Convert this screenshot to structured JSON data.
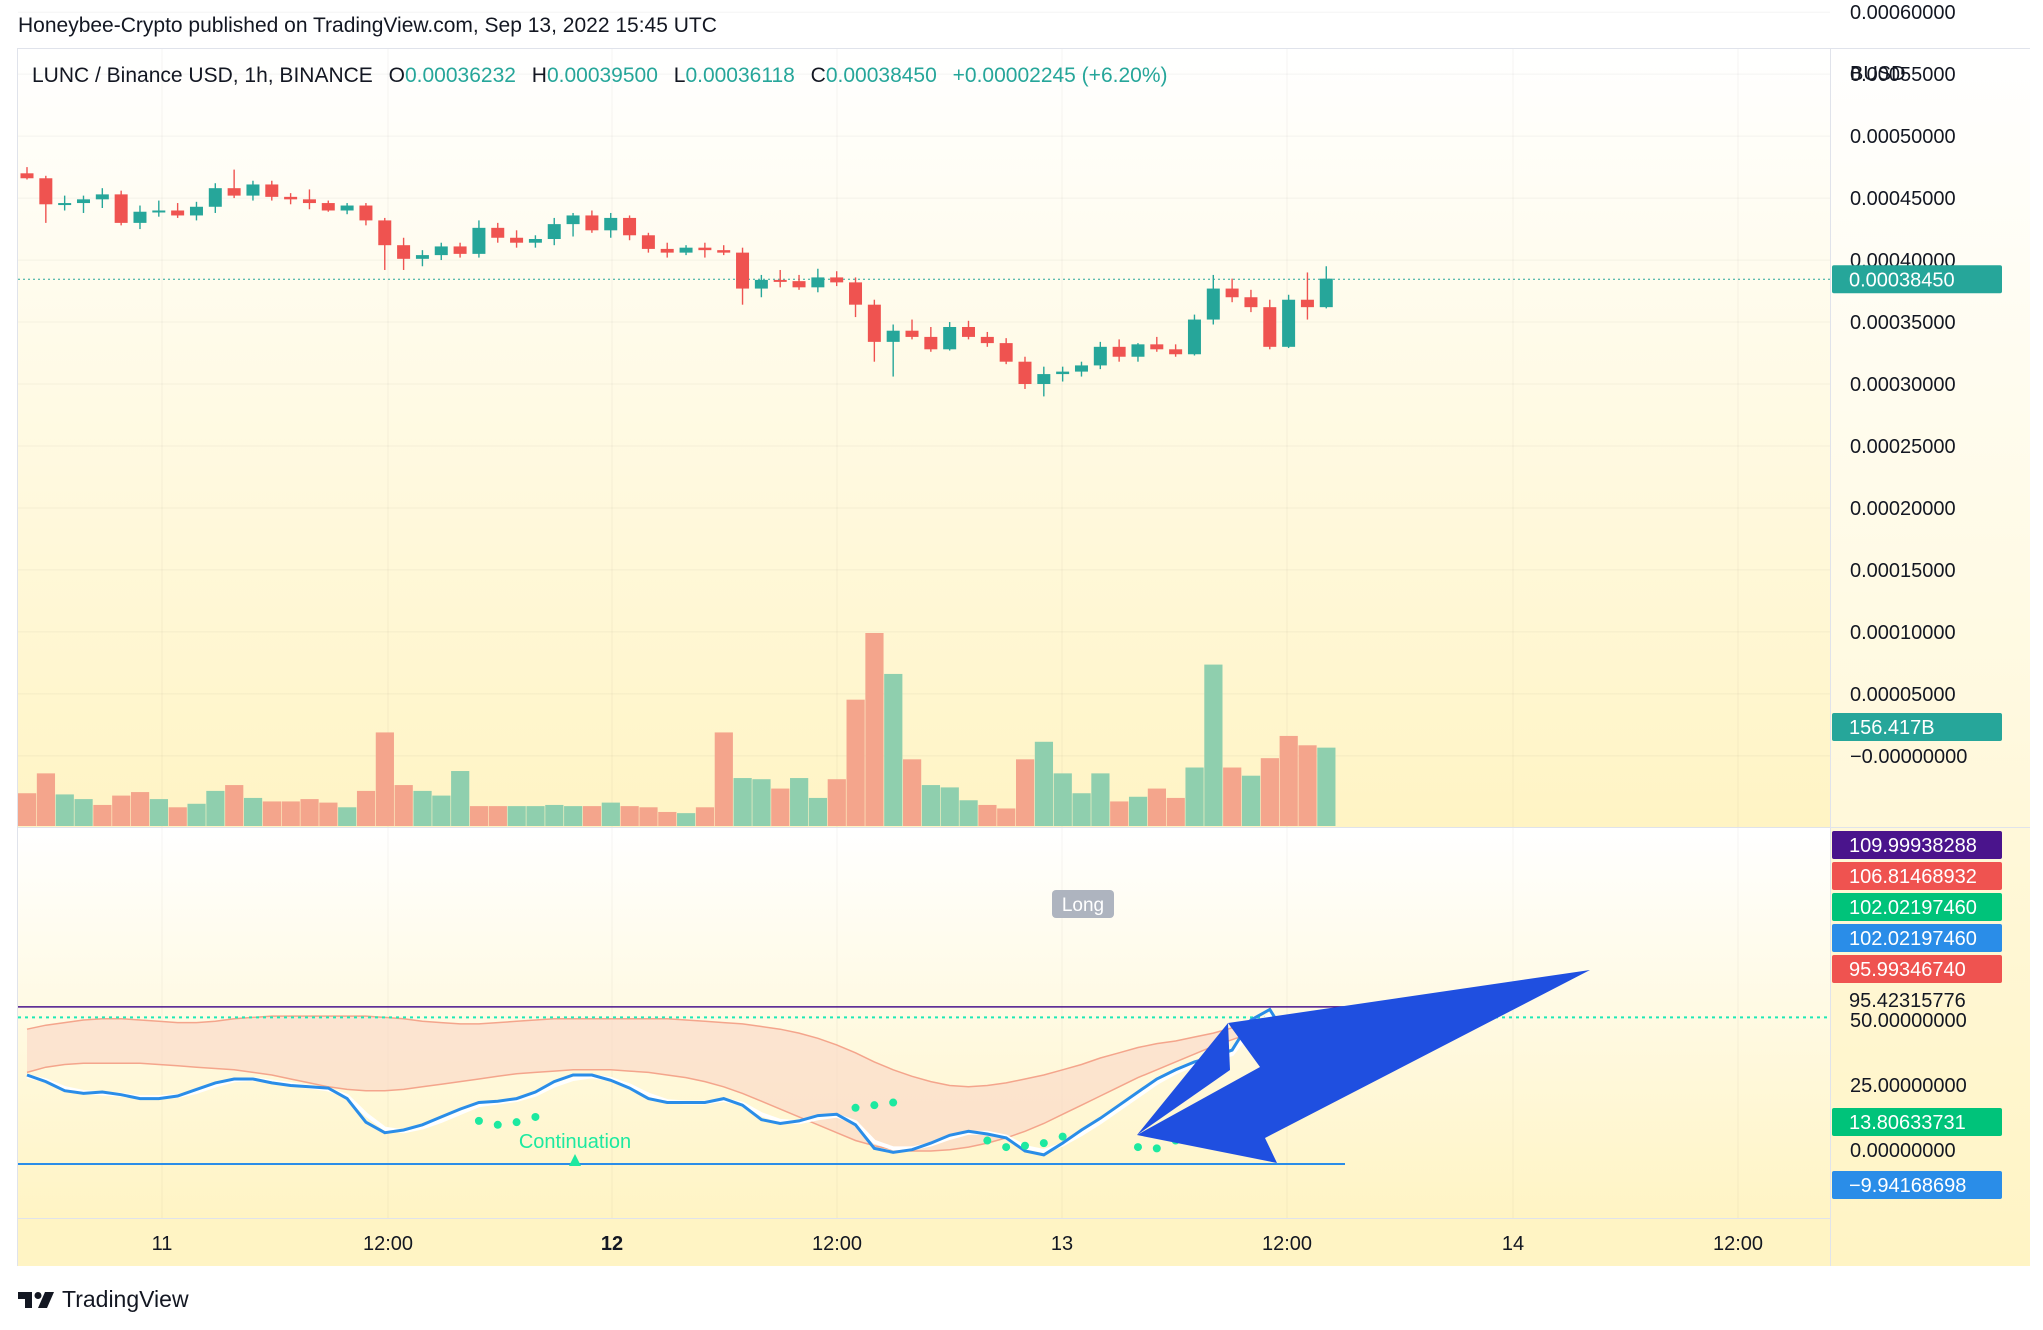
{
  "header": {
    "publisher": "Honeybee-Crypto published on TradingView.com, Sep 13, 2022 15:45 UTC"
  },
  "legend": {
    "symbol": "LUNC / Binance USD, 1h, BINANCE",
    "o_label": "O",
    "o_value": "0.00036232",
    "h_label": "H",
    "h_value": "0.00039500",
    "l_label": "L",
    "l_value": "0.00036118",
    "c_label": "C",
    "c_value": "0.00038450",
    "change": "+0.00002245 (+6.20%)"
  },
  "footer": {
    "brand": "TradingView"
  },
  "colors": {
    "up": "#26a69a",
    "down": "#ef5350",
    "vol_up": "#8fcfae",
    "vol_down": "#f4a58c",
    "osc_line": "#2a8de8",
    "band_fill": "#fbd9c7",
    "band_line": "#f4a58c",
    "arrow": "#1f4fe0",
    "signal_dot": "#1de9a0",
    "bg_top": "#ffffff",
    "bg_bottom": "#fff4c4"
  },
  "chart_data": [
    {
      "type": "candlestick",
      "symbol": "LUNC / Binance USD",
      "interval": "1h",
      "y_axis_unit": "BUSD",
      "ylim": [
        -3e-05,
        0.00062
      ],
      "y_ticks": [
        "0.00060000",
        "0.00055000",
        "0.00050000",
        "0.00045000",
        "0.00040000",
        "0.00035000",
        "0.00030000",
        "0.00025000",
        "0.00020000",
        "0.00015000",
        "0.00010000",
        "0.00005000",
        "−0.00000000"
      ],
      "x_ticks": [
        "11",
        "12:00",
        "12",
        "12:00",
        "13",
        "12:00",
        "14",
        "12:00"
      ],
      "last_price_label": "0.00038450",
      "volume_label": "156.417B",
      "candles": [
        [
          0.00047,
          0.000475,
          0.000465,
          0.000466
        ],
        [
          0.000466,
          0.000468,
          0.00043,
          0.000445
        ],
        [
          0.000445,
          0.000452,
          0.00044,
          0.000446
        ],
        [
          0.000446,
          0.000452,
          0.000438,
          0.000449
        ],
        [
          0.000449,
          0.000458,
          0.000442,
          0.000453
        ],
        [
          0.000453,
          0.000456,
          0.000428,
          0.00043
        ],
        [
          0.00043,
          0.000444,
          0.000425,
          0.000439
        ],
        [
          0.000439,
          0.000448,
          0.000435,
          0.00044
        ],
        [
          0.00044,
          0.000446,
          0.000434,
          0.000436
        ],
        [
          0.000436,
          0.000447,
          0.000432,
          0.000443
        ],
        [
          0.000443,
          0.000462,
          0.000438,
          0.000458
        ],
        [
          0.000458,
          0.000473,
          0.00045,
          0.000452
        ],
        [
          0.000452,
          0.000464,
          0.000448,
          0.000461
        ],
        [
          0.000461,
          0.000464,
          0.000448,
          0.000451
        ],
        [
          0.000451,
          0.000454,
          0.000445,
          0.000449
        ],
        [
          0.000449,
          0.000457,
          0.000441,
          0.000446
        ],
        [
          0.000446,
          0.000448,
          0.000439,
          0.00044
        ],
        [
          0.00044,
          0.000446,
          0.000437,
          0.000444
        ],
        [
          0.000444,
          0.000446,
          0.000428,
          0.000432
        ],
        [
          0.000432,
          0.000434,
          0.000392,
          0.000412
        ],
        [
          0.000412,
          0.000418,
          0.000392,
          0.000401
        ],
        [
          0.000401,
          0.000408,
          0.000395,
          0.000404
        ],
        [
          0.000404,
          0.000414,
          0.0004,
          0.000411
        ],
        [
          0.000411,
          0.000414,
          0.000402,
          0.000405
        ],
        [
          0.000405,
          0.000432,
          0.000402,
          0.000426
        ],
        [
          0.000426,
          0.00043,
          0.000414,
          0.000418
        ],
        [
          0.000418,
          0.000424,
          0.00041,
          0.000414
        ],
        [
          0.000414,
          0.00042,
          0.00041,
          0.000417
        ],
        [
          0.000417,
          0.000434,
          0.000412,
          0.000429
        ],
        [
          0.000429,
          0.000438,
          0.000419,
          0.000436
        ],
        [
          0.000436,
          0.00044,
          0.000422,
          0.000424
        ],
        [
          0.000424,
          0.000438,
          0.000418,
          0.000434
        ],
        [
          0.000434,
          0.000436,
          0.000416,
          0.00042
        ],
        [
          0.00042,
          0.000422,
          0.000406,
          0.000409
        ],
        [
          0.000409,
          0.000414,
          0.000402,
          0.000406
        ],
        [
          0.000406,
          0.000412,
          0.000404,
          0.00041
        ],
        [
          0.00041,
          0.000414,
          0.000402,
          0.000408
        ],
        [
          0.000408,
          0.000412,
          0.000404,
          0.000406
        ],
        [
          0.000406,
          0.00041,
          0.000364,
          0.000377
        ],
        [
          0.000377,
          0.000388,
          0.00037,
          0.000384
        ],
        [
          0.000384,
          0.000392,
          0.000378,
          0.000383
        ],
        [
          0.000383,
          0.000388,
          0.000376,
          0.000378
        ],
        [
          0.000378,
          0.000393,
          0.000374,
          0.000386
        ],
        [
          0.000386,
          0.000391,
          0.000379,
          0.000382
        ],
        [
          0.000382,
          0.000386,
          0.000354,
          0.000364
        ],
        [
          0.000364,
          0.000368,
          0.000318,
          0.000334
        ],
        [
          0.000334,
          0.000348,
          0.000306,
          0.000343
        ],
        [
          0.000343,
          0.000352,
          0.000336,
          0.000338
        ],
        [
          0.000338,
          0.000346,
          0.000326,
          0.000328
        ],
        [
          0.000328,
          0.00035,
          0.000327,
          0.000346
        ],
        [
          0.000346,
          0.000351,
          0.000336,
          0.000338
        ],
        [
          0.000338,
          0.000342,
          0.00033,
          0.000333
        ],
        [
          0.000333,
          0.000337,
          0.000316,
          0.000318
        ],
        [
          0.000318,
          0.000322,
          0.000296,
          0.0003
        ],
        [
          0.0003,
          0.000314,
          0.00029,
          0.000308
        ],
        [
          0.000308,
          0.000314,
          0.000302,
          0.00031
        ],
        [
          0.00031,
          0.000318,
          0.000306,
          0.000315
        ],
        [
          0.000315,
          0.000334,
          0.000312,
          0.00033
        ],
        [
          0.00033,
          0.000336,
          0.000318,
          0.000322
        ],
        [
          0.000322,
          0.000333,
          0.000318,
          0.000332
        ],
        [
          0.000332,
          0.000338,
          0.000326,
          0.000328
        ],
        [
          0.000328,
          0.000332,
          0.000322,
          0.000324
        ],
        [
          0.000324,
          0.000356,
          0.000323,
          0.000352
        ],
        [
          0.000352,
          0.000388,
          0.000348,
          0.000377
        ],
        [
          0.000377,
          0.000385,
          0.000366,
          0.00037
        ],
        [
          0.00037,
          0.000376,
          0.000358,
          0.000362
        ],
        [
          0.000362,
          0.000368,
          0.000328,
          0.00033
        ],
        [
          0.00033,
          0.000372,
          0.000329,
          0.000368
        ],
        [
          0.000368,
          0.00039,
          0.000352,
          0.000362
        ],
        [
          0.000362,
          0.000395,
          0.000361,
          0.000385
        ]
      ],
      "volume": [
        28,
        45,
        27,
        23,
        18,
        26,
        29,
        23,
        16,
        19,
        30,
        35,
        24,
        21,
        21,
        23,
        20,
        16,
        30,
        80,
        35,
        30,
        26,
        47,
        17,
        17,
        17,
        17,
        18,
        17,
        17,
        20,
        17,
        16,
        12,
        11,
        16,
        80,
        41,
        40,
        32,
        41,
        24,
        40,
        108,
        165,
        130,
        57,
        35,
        33,
        22,
        18,
        15,
        57,
        72,
        45,
        28,
        45,
        21,
        25,
        32,
        24,
        50,
        138,
        50,
        43,
        58,
        77,
        69,
        67
      ],
      "volume_direction": [
        "down",
        "down",
        "up",
        "up",
        "down",
        "down",
        "down",
        "up",
        "down",
        "up",
        "up",
        "down",
        "up",
        "down",
        "down",
        "down",
        "down",
        "up",
        "down",
        "down",
        "down",
        "up",
        "up",
        "up",
        "down",
        "down",
        "up",
        "up",
        "up",
        "up",
        "down",
        "up",
        "down",
        "down",
        "down",
        "up",
        "down",
        "down",
        "up",
        "up",
        "down",
        "up",
        "up",
        "down",
        "down",
        "down",
        "up",
        "down",
        "up",
        "up",
        "up",
        "down",
        "down",
        "down",
        "up",
        "up",
        "up",
        "up",
        "down",
        "up",
        "down",
        "down",
        "up",
        "up",
        "down",
        "up",
        "down",
        "down",
        "down",
        "up"
      ],
      "oscillator": {
        "price_labels": [
          {
            "value": "109.99938288",
            "color": "#4a148c"
          },
          {
            "value": "106.81468932",
            "color": "#ef5350"
          },
          {
            "value": "102.02197460",
            "color": "#00c37a"
          },
          {
            "value": "102.02197460",
            "color": "#2a8de8"
          },
          {
            "value": "95.99346740",
            "color": "#ef5350"
          },
          {
            "value": "95.42315776",
            "color": "none"
          },
          {
            "value": "13.80633731",
            "color": "#00c37a"
          },
          {
            "value": "−9.94168698",
            "color": "#2a8de8"
          }
        ],
        "y_ticks": [
          "50.00000000",
          "25.00000000",
          "0.00000000"
        ],
        "main": [
          58,
          53,
          46,
          44,
          45,
          43,
          40,
          40,
          42,
          47,
          52,
          55,
          55,
          52,
          50,
          49,
          48,
          40,
          22,
          14,
          16,
          20,
          26,
          32,
          37,
          38,
          40,
          45,
          53,
          58,
          58,
          54,
          48,
          40,
          37,
          37,
          37,
          40,
          35,
          24,
          21,
          23,
          27,
          28,
          20,
          2,
          -1,
          1,
          6,
          12,
          15,
          13,
          10,
          0,
          -3,
          6,
          16,
          25,
          35,
          45,
          55,
          62,
          68,
          72,
          77,
          100,
          108,
          85,
          76,
          87
        ],
        "signal": [
          57,
          54,
          48,
          45,
          44,
          43,
          41,
          41,
          42,
          45,
          50,
          54,
          55,
          53,
          51,
          49,
          47,
          42,
          28,
          17,
          15,
          18,
          23,
          29,
          35,
          37,
          39,
          43,
          50,
          55,
          57,
          55,
          50,
          43,
          38,
          37,
          37,
          39,
          36,
          28,
          23,
          22,
          25,
          27,
          22,
          7,
          2,
          2,
          5,
          10,
          14,
          14,
          11,
          3,
          0,
          5,
          13,
          22,
          32,
          42,
          52,
          60,
          66,
          70,
          74,
          92,
          104,
          90,
          80,
          84
        ],
        "band_upper": [
          93,
          96,
          98,
          100,
          101,
          101,
          100,
          99,
          98,
          98,
          99,
          101,
          102,
          103,
          103,
          103,
          103,
          103,
          103,
          102,
          101,
          99,
          98,
          97,
          97,
          98,
          99,
          100,
          101,
          101,
          101,
          101,
          101,
          101,
          101,
          100,
          99,
          98,
          97,
          95,
          93,
          90,
          86,
          81,
          75,
          68,
          62,
          57,
          53,
          50,
          49,
          50,
          52,
          55,
          58,
          62,
          66,
          71,
          75,
          79,
          82,
          84,
          87,
          90,
          94,
          98,
          101,
          103,
          104,
          105
        ],
        "band_lower": [
          60,
          64,
          66,
          67,
          67,
          67,
          67,
          66,
          65,
          64,
          63,
          62,
          60,
          58,
          55,
          52,
          49,
          47,
          46,
          46,
          47,
          49,
          51,
          53,
          55,
          57,
          59,
          60,
          61,
          62,
          62,
          62,
          61,
          60,
          58,
          56,
          53,
          49,
          44,
          38,
          32,
          26,
          20,
          14,
          8,
          4,
          1,
          0,
          0,
          1,
          3,
          6,
          10,
          15,
          21,
          28,
          35,
          42,
          49,
          56,
          62,
          68,
          74,
          80,
          85,
          90,
          94,
          97,
          99,
          101
        ],
        "signal_dots": [
          [
            24,
            23
          ],
          [
            25,
            20
          ],
          [
            26,
            22
          ],
          [
            27,
            26
          ],
          [
            44,
            33
          ],
          [
            45,
            35
          ],
          [
            46,
            37
          ],
          [
            51,
            8
          ],
          [
            52,
            3
          ],
          [
            53,
            4
          ],
          [
            54,
            6
          ],
          [
            55,
            11
          ],
          [
            59,
            3
          ],
          [
            60,
            2
          ],
          [
            61,
            8
          ]
        ],
        "annotations": [
          "Continuation",
          "Long"
        ]
      }
    }
  ]
}
